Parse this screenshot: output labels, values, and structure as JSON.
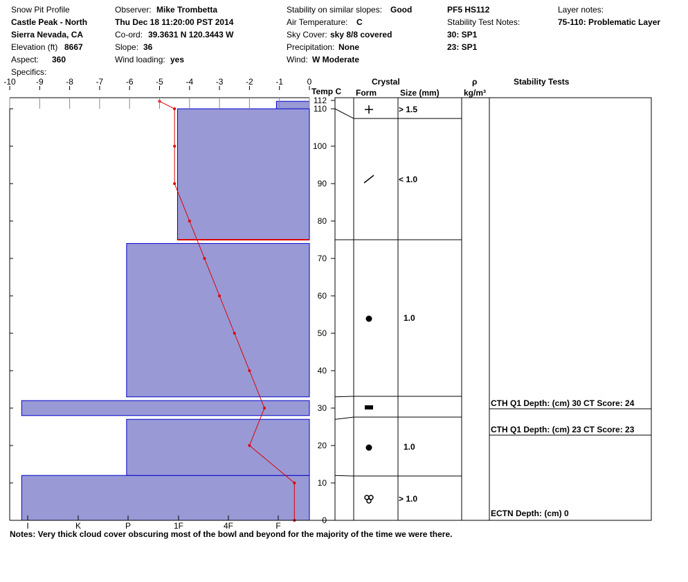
{
  "header": {
    "col1": {
      "title": "Snow Pit Profile",
      "location": "Castle Peak - North",
      "region": "Sierra Nevada, CA",
      "elevation_label": "Elevation (ft)",
      "elevation_value": "8667",
      "aspect_label": "Aspect:",
      "aspect_value": "360",
      "specifics_label": "Specifics:"
    },
    "col2": {
      "observer_label": "Observer:",
      "observer_value": "Mike Trombetta",
      "datetime": "Thu Dec 18 11:20:00 PST 2014",
      "coord_label": "Co-ord:",
      "coord_value": "39.3631 N 120.3443 W",
      "slope_label": "Slope:",
      "slope_value": "36",
      "wind_loading_label": "Wind loading:",
      "wind_loading_value": "yes"
    },
    "col3": {
      "stability_label": "Stability on similar slopes:",
      "stability_value": "Good",
      "air_temp_label": "Air Temperature:",
      "air_temp_value": "C",
      "sky_label": "Sky Cover:",
      "sky_value": "sky 8/8 covered",
      "precip_label": "Precipitation:",
      "precip_value": "None",
      "wind_label": "Wind:",
      "wind_value": "W Moderate"
    },
    "col4": {
      "pf": "PF5 HS112",
      "stn_label": "Stability Test Notes:",
      "note1": "30: SP1",
      "note2": "23: SP1"
    },
    "col5": {
      "layer_notes_label": "Layer notes:",
      "layer_note": "75-110: Problematic Layer"
    }
  },
  "columns": {
    "temp": "Temp C",
    "crystal": "Crystal",
    "form": "Form",
    "size": "Size (mm)",
    "rho": "ρ",
    "rho_unit": "kg/m³",
    "stability_tests": "Stability Tests"
  },
  "notes": "Notes:  Very thick cloud cover obscuring most of the bowl and beyond for the majority of the time we were there.",
  "chart_data": {
    "type": "snow-profile",
    "temperature_axis": {
      "label": "Temp C",
      "ticks": [
        -10,
        -9,
        -8,
        -7,
        -6,
        -5,
        -4,
        -3,
        -2,
        -1,
        0
      ],
      "range": [
        -10,
        0
      ]
    },
    "hardness_axis": {
      "ticks": [
        "I",
        "K",
        "P",
        "1F",
        "4F",
        "F"
      ]
    },
    "depth_axis": {
      "ticks": [
        0,
        10,
        20,
        30,
        40,
        50,
        60,
        70,
        80,
        90,
        100,
        110,
        112
      ],
      "range": [
        0,
        112
      ]
    },
    "hardness_layers": [
      {
        "bottom": 0,
        "top": 12,
        "temp_edge": -9.6
      },
      {
        "bottom": 12,
        "top": 27,
        "temp_edge": -6.1
      },
      {
        "bottom": 28,
        "top": 32,
        "temp_edge": -9.6
      },
      {
        "bottom": 33,
        "top": 74,
        "temp_edge": -6.1
      },
      {
        "bottom": 75,
        "top": 110,
        "temp_edge": -4.4
      },
      {
        "bottom": 110,
        "top": 112,
        "temp_edge": -1.1
      }
    ],
    "temperature_profile": [
      {
        "depth": 0,
        "temp": -0.5
      },
      {
        "depth": 10,
        "temp": -0.5
      },
      {
        "depth": 20,
        "temp": -2.0
      },
      {
        "depth": 30,
        "temp": -1.5
      },
      {
        "depth": 40,
        "temp": -2.0
      },
      {
        "depth": 50,
        "temp": -2.5
      },
      {
        "depth": 60,
        "temp": -3.0
      },
      {
        "depth": 70,
        "temp": -3.5
      },
      {
        "depth": 80,
        "temp": -4.0
      },
      {
        "depth": 90,
        "temp": -4.5
      },
      {
        "depth": 100,
        "temp": -4.5
      },
      {
        "depth": 110,
        "temp": -4.5
      },
      {
        "depth": 112,
        "temp": -5.0
      }
    ],
    "problematic_layer": {
      "bottom": 75,
      "top": 110
    },
    "crystal_layers": [
      {
        "bottom": 107,
        "top": 112,
        "form_icon": "plus-icon",
        "size": "> 1.5"
      },
      {
        "bottom": 75,
        "top": 107,
        "form_icon": "slash-icon",
        "size": "< 1.0"
      },
      {
        "bottom": 33,
        "top": 75,
        "form_icon": "dot-icon",
        "size": "1.0"
      },
      {
        "bottom": 27,
        "top": 33,
        "form_icon": "bar-icon",
        "size": ""
      },
      {
        "bottom": 12,
        "top": 27,
        "form_icon": "dot-icon",
        "size": "1.0"
      },
      {
        "bottom": 0,
        "top": 12,
        "form_icon": "trefoil-icon",
        "size": "> 1.0"
      }
    ],
    "stability_tests": [
      {
        "depth": 30,
        "label": "CTH Q1 Depth: (cm) 30 CT Score: 24"
      },
      {
        "depth": 23,
        "label": "CTH Q1 Depth: (cm) 23 CT Score: 23"
      },
      {
        "depth": 0,
        "label": "ECTN  Depth: (cm) 0"
      }
    ],
    "colors": {
      "layer_fill": "#9999d6",
      "layer_stroke": "#0000cc",
      "temp_line": "#dd0000",
      "problem_line": "#dd0000"
    }
  }
}
